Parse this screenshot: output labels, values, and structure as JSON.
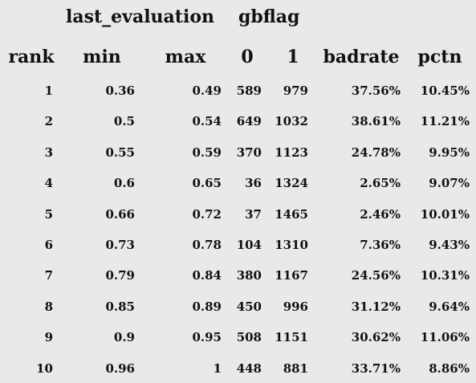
{
  "chart_data": {
    "type": "table",
    "group_headers": [
      "last_evaluation",
      "gbflag"
    ],
    "columns": [
      "rank",
      "min",
      "max",
      "0",
      "1",
      "badrate",
      "pctn"
    ],
    "rows": [
      [
        "1",
        "0.36",
        "0.49",
        "589",
        "979",
        "37.56%",
        "10.45%"
      ],
      [
        "2",
        "0.5",
        "0.54",
        "649",
        "1032",
        "38.61%",
        "11.21%"
      ],
      [
        "3",
        "0.55",
        "0.59",
        "370",
        "1123",
        "24.78%",
        "9.95%"
      ],
      [
        "4",
        "0.6",
        "0.65",
        "36",
        "1324",
        "2.65%",
        "9.07%"
      ],
      [
        "5",
        "0.66",
        "0.72",
        "37",
        "1465",
        "2.46%",
        "10.01%"
      ],
      [
        "6",
        "0.73",
        "0.78",
        "104",
        "1310",
        "7.36%",
        "9.43%"
      ],
      [
        "7",
        "0.79",
        "0.84",
        "380",
        "1167",
        "24.56%",
        "10.31%"
      ],
      [
        "8",
        "0.85",
        "0.89",
        "450",
        "996",
        "31.12%",
        "9.64%"
      ],
      [
        "9",
        "0.9",
        "0.95",
        "508",
        "1151",
        "30.62%",
        "11.06%"
      ],
      [
        "10",
        "0.96",
        "1",
        "448",
        "881",
        "33.71%",
        "8.86%"
      ]
    ]
  }
}
